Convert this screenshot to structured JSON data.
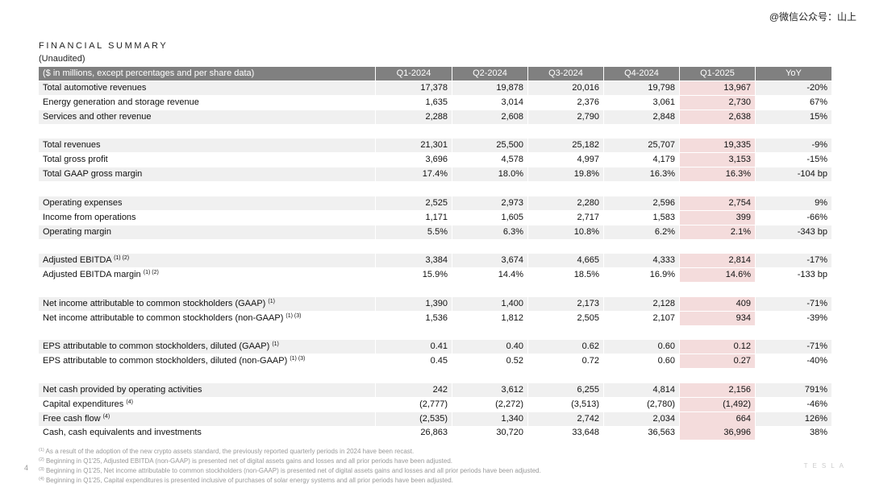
{
  "watermark": "@微信公众号：山上",
  "header": {
    "title": "FINANCIAL SUMMARY",
    "subtitle": "(Unaudited)"
  },
  "table": {
    "columns": [
      "($ in millions, except percentages and per share data)",
      "Q1-2024",
      "Q2-2024",
      "Q3-2024",
      "Q4-2024",
      "Q1-2025",
      "YoY"
    ],
    "groups": [
      {
        "rows": [
          {
            "label": "Total automotive revenues",
            "values": [
              "17,378",
              "19,878",
              "20,016",
              "19,798",
              "13,967",
              "-20%"
            ]
          },
          {
            "label": "Energy generation and storage revenue",
            "values": [
              "1,635",
              "3,014",
              "2,376",
              "3,061",
              "2,730",
              "67%"
            ]
          },
          {
            "label": "Services and other revenue",
            "values": [
              "2,288",
              "2,608",
              "2,790",
              "2,848",
              "2,638",
              "15%"
            ]
          }
        ]
      },
      {
        "rows": [
          {
            "label": "Total revenues",
            "values": [
              "21,301",
              "25,500",
              "25,182",
              "25,707",
              "19,335",
              "-9%"
            ]
          },
          {
            "label": "Total gross profit",
            "values": [
              "3,696",
              "4,578",
              "4,997",
              "4,179",
              "3,153",
              "-15%"
            ]
          },
          {
            "label": "Total GAAP gross margin",
            "values": [
              "17.4%",
              "18.0%",
              "19.8%",
              "16.3%",
              "16.3%",
              "-104 bp"
            ]
          }
        ]
      },
      {
        "rows": [
          {
            "label": "Operating expenses",
            "values": [
              "2,525",
              "2,973",
              "2,280",
              "2,596",
              "2,754",
              "9%"
            ]
          },
          {
            "label": "Income from operations",
            "values": [
              "1,171",
              "1,605",
              "2,717",
              "1,583",
              "399",
              "-66%"
            ]
          },
          {
            "label": "Operating margin",
            "values": [
              "5.5%",
              "6.3%",
              "10.8%",
              "6.2%",
              "2.1%",
              "-343 bp"
            ]
          }
        ]
      },
      {
        "rows": [
          {
            "label": "Adjusted EBITDA",
            "note": "(1) (2)",
            "values": [
              "3,384",
              "3,674",
              "4,665",
              "4,333",
              "2,814",
              "-17%"
            ]
          },
          {
            "label": "Adjusted EBITDA margin",
            "note": "(1) (2)",
            "values": [
              "15.9%",
              "14.4%",
              "18.5%",
              "16.9%",
              "14.6%",
              "-133 bp"
            ]
          }
        ]
      },
      {
        "rows": [
          {
            "label": "Net income attributable to common stockholders (GAAP)",
            "note": "(1)",
            "values": [
              "1,390",
              "1,400",
              "2,173",
              "2,128",
              "409",
              "-71%"
            ]
          },
          {
            "label": "Net income attributable to common stockholders (non-GAAP)",
            "note": "(1) (3)",
            "values": [
              "1,536",
              "1,812",
              "2,505",
              "2,107",
              "934",
              "-39%"
            ]
          }
        ]
      },
      {
        "rows": [
          {
            "label": "EPS attributable to common stockholders, diluted (GAAP)",
            "note": "(1)",
            "values": [
              "0.41",
              "0.40",
              "0.62",
              "0.60",
              "0.12",
              "-71%"
            ]
          },
          {
            "label": "EPS attributable to common stockholders, diluted (non-GAAP)",
            "note": "(1) (3)",
            "values": [
              "0.45",
              "0.52",
              "0.72",
              "0.60",
              "0.27",
              "-40%"
            ]
          }
        ]
      },
      {
        "rows": [
          {
            "label": "Net cash provided by operating activities",
            "values": [
              "242",
              "3,612",
              "6,255",
              "4,814",
              "2,156",
              "791%"
            ]
          },
          {
            "label": "Capital expenditures",
            "note": "(4)",
            "values": [
              "(2,777)",
              "(2,272)",
              "(3,513)",
              "(2,780)",
              "(1,492)",
              "-46%"
            ]
          },
          {
            "label": "Free cash flow",
            "note": "(4)",
            "values": [
              "(2,535)",
              "1,340",
              "2,742",
              "2,034",
              "664",
              "126%"
            ]
          },
          {
            "label": "Cash, cash equivalents and investments",
            "values": [
              "26,863",
              "30,720",
              "33,648",
              "36,563",
              "36,996",
              "38%"
            ]
          }
        ]
      }
    ]
  },
  "footnotes": [
    {
      "mark": "(1)",
      "text": "As a result of the adoption of the new crypto assets standard, the previously reported quarterly periods in 2024 have been recast."
    },
    {
      "mark": "(2)",
      "text": "Beginning in Q1'25, Adjusted EBITDA (non-GAAP) is presented net of digital assets gains and losses and all prior periods have been adjusted."
    },
    {
      "mark": "(3)",
      "text": "Beginning in Q1'25, Net income attributable to common stockholders (non-GAAP) is presented net of digital assets gains and losses and all prior periods have been adjusted."
    },
    {
      "mark": "(4)",
      "text": "Beginning in Q1'25, Capital expenditures is presented inclusive of purchases of solar energy systems and all prior periods have been adjusted."
    }
  ],
  "footer": {
    "page": "4",
    "logo": "TESLA"
  }
}
